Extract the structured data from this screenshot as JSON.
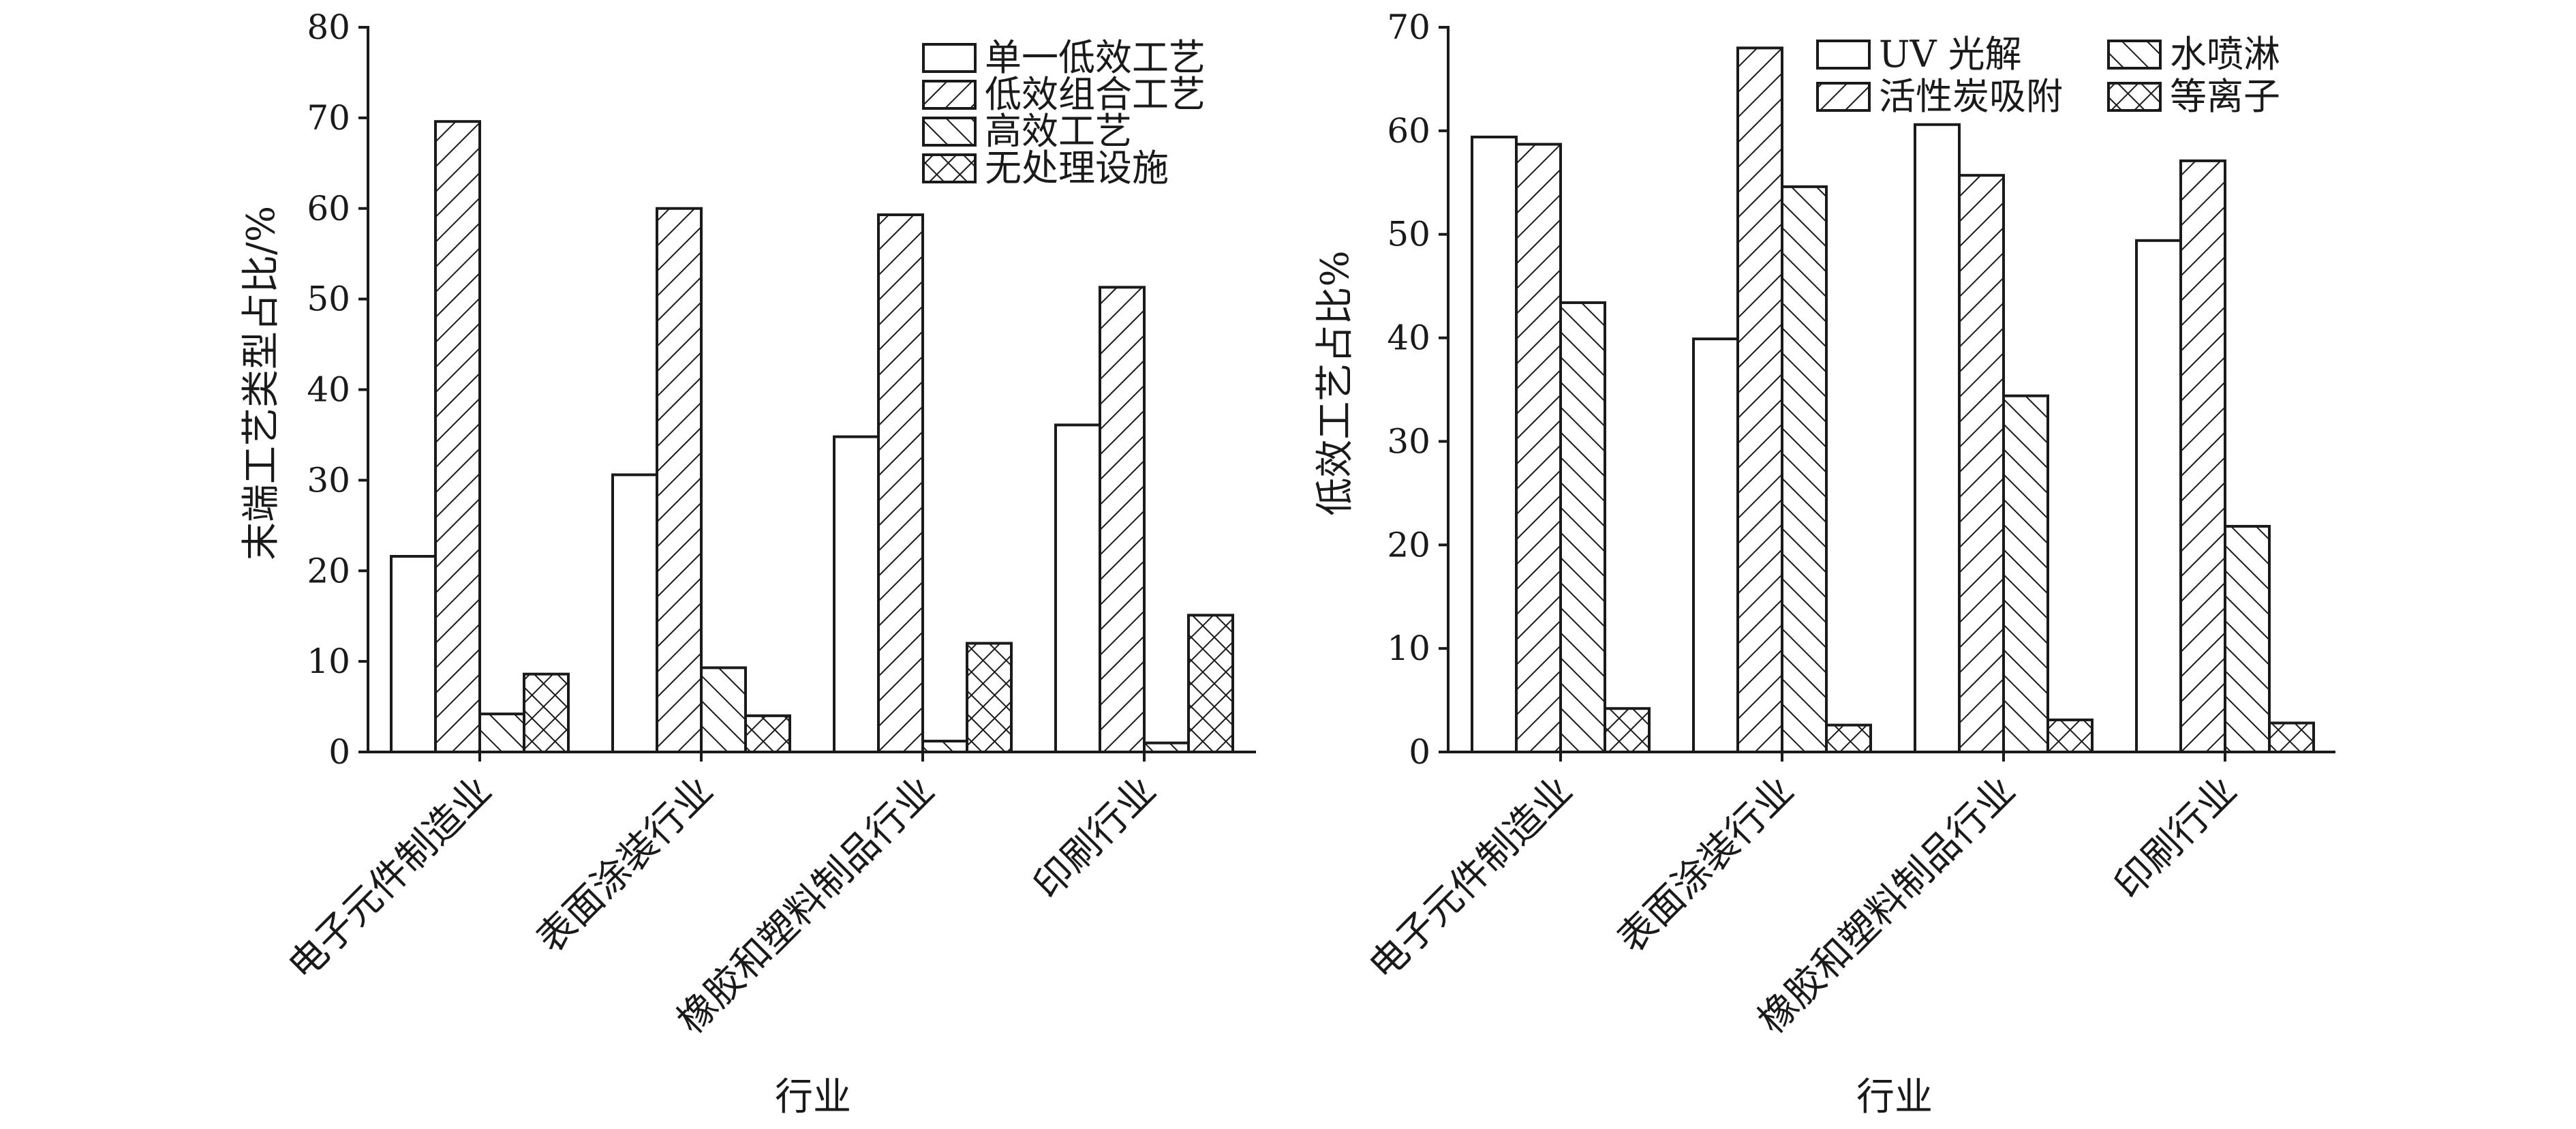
{
  "chart_data": [
    {
      "type": "bar",
      "xlabel": "行业",
      "ylabel": "末端工艺类型占比/%",
      "ylim": [
        0,
        80
      ],
      "yticks": [
        0,
        10,
        20,
        30,
        40,
        50,
        60,
        70,
        80
      ],
      "categories": [
        "电子元件制造业",
        "表面涂装行业",
        "橡胶和塑料制品行业",
        "印刷行业"
      ],
      "legend_position": "top-right",
      "series": [
        {
          "name": "单一低效工艺",
          "pattern": "blank",
          "values": [
            21.6,
            30.6,
            34.8,
            36.1
          ]
        },
        {
          "name": "低效组合工艺",
          "pattern": "diag-up",
          "values": [
            69.6,
            60.0,
            59.3,
            51.3
          ]
        },
        {
          "name": "高效工艺",
          "pattern": "diag-down",
          "values": [
            4.2,
            9.3,
            1.2,
            1.0
          ]
        },
        {
          "name": "无处理设施",
          "pattern": "cross",
          "values": [
            8.6,
            4.0,
            12.0,
            15.1
          ]
        }
      ]
    },
    {
      "type": "bar",
      "xlabel": "行业",
      "ylabel": "低效工艺占比%",
      "ylim": [
        0,
        70
      ],
      "yticks": [
        0,
        10,
        20,
        30,
        40,
        50,
        60,
        70
      ],
      "categories": [
        "电子元件制造业",
        "表面涂装行业",
        "橡胶和塑料制品行业",
        "印刷行业"
      ],
      "legend_position": "top-right",
      "series": [
        {
          "name": "UV 光解",
          "pattern": "blank",
          "values": [
            59.4,
            39.9,
            60.6,
            49.4
          ]
        },
        {
          "name": "活性炭吸附",
          "pattern": "diag-up",
          "values": [
            58.7,
            68.0,
            55.7,
            57.1
          ]
        },
        {
          "name": "水喷淋",
          "pattern": "diag-down",
          "values": [
            43.4,
            54.6,
            34.4,
            21.8
          ]
        },
        {
          "name": "等离子",
          "pattern": "cross",
          "values": [
            4.2,
            2.6,
            3.1,
            2.8
          ]
        }
      ]
    }
  ]
}
